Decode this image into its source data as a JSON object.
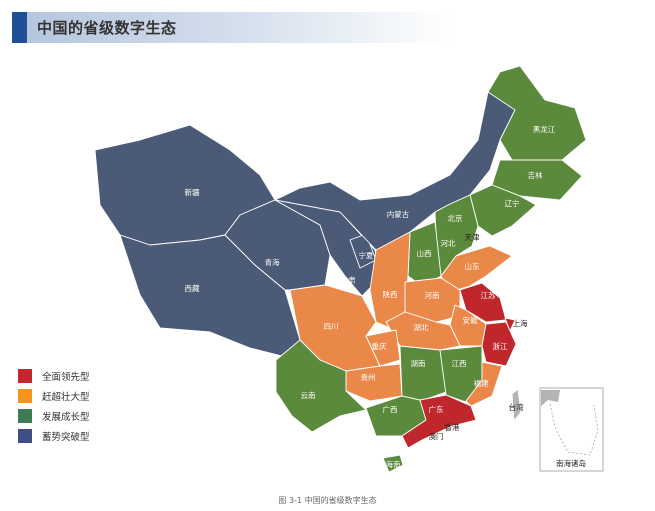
{
  "header": {
    "title": "中国的省级数字生态"
  },
  "legend": [
    {
      "label": "全面领先型",
      "category": "leading",
      "color": "#c1272d"
    },
    {
      "label": "赶超壮大型",
      "category": "catching_up",
      "color": "#f7941d"
    },
    {
      "label": "发展成长型",
      "category": "developing",
      "color": "#3d7a55"
    },
    {
      "label": "蓄势突破型",
      "category": "accumulating",
      "color": "#3f4f85"
    }
  ],
  "map_colors": {
    "leading": "#c0272d",
    "catching_up": "#e98848",
    "developing": "#5b8a3c",
    "accumulating": "#4b5a77",
    "no_data": "#b4b4b4"
  },
  "provinces": [
    {
      "name": "新疆",
      "category": "accumulating"
    },
    {
      "name": "西藏",
      "category": "accumulating"
    },
    {
      "name": "青海",
      "category": "accumulating"
    },
    {
      "name": "甘肃",
      "category": "accumulating"
    },
    {
      "name": "宁夏",
      "category": "accumulating"
    },
    {
      "name": "内蒙古",
      "category": "accumulating"
    },
    {
      "name": "黑龙江",
      "category": "developing"
    },
    {
      "name": "吉林",
      "category": "developing"
    },
    {
      "name": "辽宁",
      "category": "developing"
    },
    {
      "name": "北京",
      "category": "leading"
    },
    {
      "name": "天津",
      "category": "catching_up"
    },
    {
      "name": "河北",
      "category": "developing"
    },
    {
      "name": "山西",
      "category": "developing"
    },
    {
      "name": "山东",
      "category": "catching_up"
    },
    {
      "name": "陕西",
      "category": "catching_up"
    },
    {
      "name": "河南",
      "category": "catching_up"
    },
    {
      "name": "江苏",
      "category": "leading"
    },
    {
      "name": "上海",
      "category": "leading"
    },
    {
      "name": "安徽",
      "category": "catching_up"
    },
    {
      "name": "浙江",
      "category": "leading"
    },
    {
      "name": "湖北",
      "category": "catching_up"
    },
    {
      "name": "四川",
      "category": "catching_up"
    },
    {
      "name": "重庆",
      "category": "catching_up"
    },
    {
      "name": "贵州",
      "category": "catching_up"
    },
    {
      "name": "云南",
      "category": "developing"
    },
    {
      "name": "湖南",
      "category": "developing"
    },
    {
      "name": "江西",
      "category": "developing"
    },
    {
      "name": "福建",
      "category": "catching_up"
    },
    {
      "name": "广西",
      "category": "developing"
    },
    {
      "name": "广东",
      "category": "leading"
    },
    {
      "name": "海南",
      "category": "developing"
    },
    {
      "name": "台湾",
      "category": "no_data"
    }
  ],
  "extra_labels": [
    "香港",
    "澳门"
  ],
  "inset": {
    "label": "南海诸岛"
  },
  "caption": "图 3-1   中国的省级数字生态"
}
